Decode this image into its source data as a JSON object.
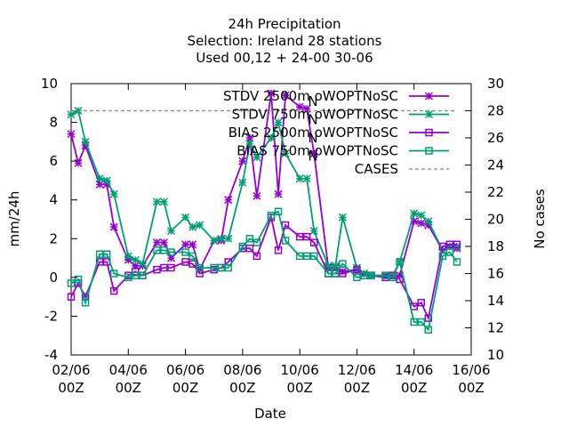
{
  "chart_data": {
    "type": "line",
    "title_lines": [
      "24h Precipitation",
      "Selection: Ireland      28 stations",
      "Used  00,12  + 24-00 30-06"
    ],
    "xlabel": "Date",
    "ylabel": "mm/24h",
    "y2label": "No cases",
    "ylim": [
      -4,
      10
    ],
    "y2lim": [
      10,
      30
    ],
    "xlim": [
      0,
      14
    ],
    "x_unit": "days since 02/06 00Z",
    "x_ticks": [
      {
        "v": 0,
        "l1": "02/06",
        "l2": "00Z"
      },
      {
        "v": 2,
        "l1": "04/06",
        "l2": "00Z"
      },
      {
        "v": 4,
        "l1": "06/06",
        "l2": "00Z"
      },
      {
        "v": 6,
        "l1": "08/06",
        "l2": "00Z"
      },
      {
        "v": 8,
        "l1": "10/06",
        "l2": "00Z"
      },
      {
        "v": 10,
        "l1": "12/06",
        "l2": "00Z"
      },
      {
        "v": 12,
        "l1": "14/06",
        "l2": "00Z"
      },
      {
        "v": 14,
        "l1": "16/06",
        "l2": "00Z"
      }
    ],
    "y_ticks": [
      -4,
      -2,
      0,
      2,
      4,
      6,
      8,
      10
    ],
    "y2_ticks": [
      10,
      12,
      14,
      16,
      18,
      20,
      22,
      24,
      26,
      28,
      30
    ],
    "legend_position": "top-right",
    "series": [
      {
        "name": "STDV 2500m oWOPTNoSC",
        "sub": "N",
        "marker": "star",
        "color": "#9400d3",
        "axis": "y",
        "points": [
          [
            0.0,
            7.4
          ],
          [
            0.25,
            5.9
          ],
          [
            0.5,
            6.8
          ],
          [
            1.0,
            4.8
          ],
          [
            1.25,
            4.8
          ],
          [
            1.5,
            2.6
          ],
          [
            2.0,
            0.9
          ],
          [
            2.25,
            0.6
          ],
          [
            2.5,
            0.6
          ],
          [
            3.0,
            1.8
          ],
          [
            3.25,
            1.8
          ],
          [
            3.5,
            1.0
          ],
          [
            4.0,
            1.7
          ],
          [
            4.25,
            1.7
          ],
          [
            4.5,
            0.4
          ],
          [
            5.0,
            1.9
          ],
          [
            5.25,
            1.9
          ],
          [
            5.5,
            4.0
          ],
          [
            6.0,
            6.0
          ],
          [
            6.25,
            7.2
          ],
          [
            6.5,
            4.2
          ],
          [
            7.0,
            9.5
          ],
          [
            7.25,
            4.3
          ],
          [
            7.5,
            9.4
          ],
          [
            8.0,
            8.8
          ],
          [
            8.25,
            8.7
          ],
          [
            8.5,
            6.4
          ],
          [
            9.0,
            0.5
          ],
          [
            9.25,
            0.5
          ],
          [
            9.5,
            0.3
          ],
          [
            10.0,
            0.4
          ],
          [
            10.25,
            0.2
          ],
          [
            10.5,
            0.1
          ],
          [
            11.0,
            0.1
          ],
          [
            11.25,
            0.1
          ],
          [
            11.5,
            0.1
          ],
          [
            12.0,
            2.9
          ],
          [
            12.25,
            2.8
          ],
          [
            12.5,
            2.7
          ],
          [
            13.0,
            1.4
          ],
          [
            13.25,
            1.6
          ],
          [
            13.5,
            1.5
          ]
        ]
      },
      {
        "name": "STDV 750m oWOPTNoSC",
        "sub": "N",
        "marker": "star",
        "color": "#009e73",
        "axis": "y",
        "points": [
          [
            0.0,
            8.4
          ],
          [
            0.25,
            8.6
          ],
          [
            0.5,
            7.0
          ],
          [
            1.0,
            5.1
          ],
          [
            1.25,
            5.0
          ],
          [
            1.5,
            4.3
          ],
          [
            2.0,
            1.1
          ],
          [
            2.25,
            0.9
          ],
          [
            2.5,
            0.7
          ],
          [
            3.0,
            3.9
          ],
          [
            3.25,
            3.9
          ],
          [
            3.5,
            2.4
          ],
          [
            4.0,
            3.1
          ],
          [
            4.25,
            2.6
          ],
          [
            4.5,
            2.7
          ],
          [
            5.0,
            1.9
          ],
          [
            5.25,
            2.0
          ],
          [
            5.5,
            2.0
          ],
          [
            6.0,
            4.9
          ],
          [
            6.25,
            6.9
          ],
          [
            6.5,
            6.2
          ],
          [
            7.0,
            7.2
          ],
          [
            7.25,
            8.0
          ],
          [
            7.5,
            6.4
          ],
          [
            8.0,
            5.1
          ],
          [
            8.25,
            5.1
          ],
          [
            8.5,
            2.4
          ],
          [
            9.0,
            0.6
          ],
          [
            9.25,
            0.6
          ],
          [
            9.5,
            3.1
          ],
          [
            10.0,
            0.5
          ],
          [
            10.25,
            0.2
          ],
          [
            10.5,
            0.1
          ],
          [
            11.0,
            0.1
          ],
          [
            11.25,
            0.1
          ],
          [
            11.5,
            0.8
          ],
          [
            12.0,
            3.3
          ],
          [
            12.25,
            3.2
          ],
          [
            12.5,
            2.9
          ],
          [
            13.0,
            1.4
          ],
          [
            13.25,
            1.6
          ],
          [
            13.5,
            1.6
          ]
        ]
      },
      {
        "name": "BIAS 2500m oWOPTNoSC",
        "sub": "N",
        "marker": "square",
        "color": "#9400d3",
        "axis": "y",
        "points": [
          [
            0.0,
            -1.0
          ],
          [
            0.25,
            -0.3
          ],
          [
            0.5,
            -1.0
          ],
          [
            1.0,
            0.8
          ],
          [
            1.25,
            0.8
          ],
          [
            1.5,
            -0.7
          ],
          [
            2.0,
            0.1
          ],
          [
            2.25,
            0.3
          ],
          [
            2.5,
            0.1
          ],
          [
            3.0,
            0.4
          ],
          [
            3.25,
            0.5
          ],
          [
            3.5,
            0.5
          ],
          [
            4.0,
            0.8
          ],
          [
            4.25,
            0.7
          ],
          [
            4.5,
            0.2
          ],
          [
            5.0,
            0.4
          ],
          [
            5.25,
            0.5
          ],
          [
            5.5,
            0.8
          ],
          [
            6.0,
            1.5
          ],
          [
            6.25,
            1.5
          ],
          [
            6.5,
            1.1
          ],
          [
            7.0,
            3.1
          ],
          [
            7.25,
            1.4
          ],
          [
            7.5,
            2.7
          ],
          [
            8.0,
            2.1
          ],
          [
            8.25,
            2.1
          ],
          [
            8.5,
            1.8
          ],
          [
            9.0,
            0.2
          ],
          [
            9.25,
            0.2
          ],
          [
            9.5,
            0.2
          ],
          [
            10.0,
            0.4
          ],
          [
            10.25,
            0.1
          ],
          [
            10.5,
            0.1
          ],
          [
            11.0,
            0.0
          ],
          [
            11.25,
            0.1
          ],
          [
            11.5,
            -0.1
          ],
          [
            12.0,
            -1.5
          ],
          [
            12.25,
            -1.3
          ],
          [
            12.5,
            -2.1
          ],
          [
            13.0,
            1.6
          ],
          [
            13.25,
            1.7
          ],
          [
            13.5,
            1.7
          ]
        ]
      },
      {
        "name": "BIAS 750m oWOPTNoSC",
        "sub": "N",
        "marker": "square",
        "color": "#009e73",
        "axis": "y",
        "points": [
          [
            0.0,
            -0.3
          ],
          [
            0.25,
            -0.1
          ],
          [
            0.5,
            -1.3
          ],
          [
            1.0,
            1.2
          ],
          [
            1.25,
            1.2
          ],
          [
            1.5,
            0.2
          ],
          [
            2.0,
            0.0
          ],
          [
            2.25,
            0.1
          ],
          [
            2.5,
            0.1
          ],
          [
            3.0,
            1.4
          ],
          [
            3.25,
            1.4
          ],
          [
            3.5,
            1.3
          ],
          [
            4.0,
            1.3
          ],
          [
            4.25,
            1.1
          ],
          [
            4.5,
            0.5
          ],
          [
            5.0,
            0.5
          ],
          [
            5.25,
            0.5
          ],
          [
            5.5,
            0.5
          ],
          [
            6.0,
            1.6
          ],
          [
            6.25,
            2.0
          ],
          [
            6.5,
            1.8
          ],
          [
            7.0,
            3.2
          ],
          [
            7.25,
            3.4
          ],
          [
            7.5,
            1.9
          ],
          [
            8.0,
            1.1
          ],
          [
            8.25,
            1.1
          ],
          [
            8.5,
            1.1
          ],
          [
            9.0,
            0.2
          ],
          [
            9.25,
            0.2
          ],
          [
            9.5,
            0.7
          ],
          [
            10.0,
            0.0
          ],
          [
            10.25,
            0.1
          ],
          [
            10.5,
            0.1
          ],
          [
            11.0,
            0.1
          ],
          [
            11.25,
            0.0
          ],
          [
            11.5,
            0.8
          ],
          [
            12.0,
            -2.3
          ],
          [
            12.25,
            -2.3
          ],
          [
            12.5,
            -2.7
          ],
          [
            13.0,
            1.1
          ],
          [
            13.25,
            1.3
          ],
          [
            13.5,
            0.8
          ]
        ]
      },
      {
        "name": "CASES",
        "marker": "none",
        "dashed": true,
        "color": "#888888",
        "axis": "y2",
        "points": [
          [
            0.0,
            28
          ],
          [
            13.5,
            28
          ]
        ]
      }
    ]
  }
}
